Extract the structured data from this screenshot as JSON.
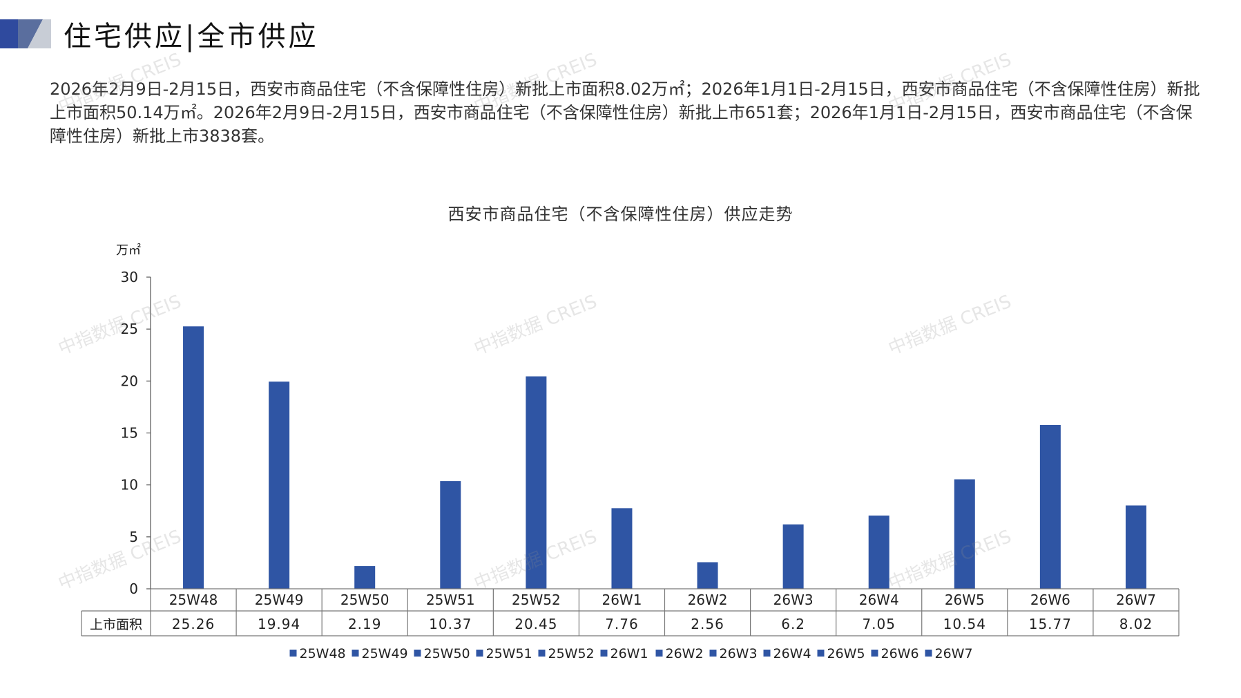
{
  "header": {
    "title_part1": "住宅供应",
    "title_part2": "全市供应"
  },
  "summary": "2026年2月9日-2月15日，西安市商品住宅（不含保障性住房）新批上市面积8.02万㎡；2026年1月1日-2月15日，西安市商品住宅（不含保障性住房）新批上市面积50.14万㎡。2026年2月9日-2月15日，西安市商品住宅（不含保障性住房）新批上市651套；2026年1月1日-2月15日，西安市商品住宅（不含保障性住房）新批上市3838套。",
  "watermark": "中指数据 CREIS",
  "colors": {
    "bar": "#2f55a4",
    "deco_dark": "#2f4a9e",
    "deco_light": "#c8cdd6",
    "deco_mid": "#5a6e9e"
  },
  "chart_data": {
    "type": "bar",
    "title": "西安市商品住宅（不含保障性住房）供应走势",
    "ylabel": "万㎡",
    "ylim": [
      0,
      30
    ],
    "yticks": [
      0,
      5,
      10,
      15,
      20,
      25,
      30
    ],
    "categories": [
      "25W48",
      "25W49",
      "25W50",
      "25W51",
      "25W52",
      "26W1",
      "26W2",
      "26W3",
      "26W4",
      "26W5",
      "26W6",
      "26W7"
    ],
    "series": [
      {
        "name": "上市面积",
        "values": [
          25.26,
          19.94,
          2.19,
          10.37,
          20.45,
          7.76,
          2.56,
          6.2,
          7.05,
          10.54,
          15.77,
          8.02
        ],
        "value_labels": [
          "25.26",
          "19.94",
          "2.19",
          "10.37",
          "20.45",
          "7.76",
          "2.56",
          "6.2",
          "7.05",
          "10.54",
          "15.77",
          "8.02"
        ]
      }
    ],
    "data_table": true,
    "legend_position": "bottom",
    "grid": false
  }
}
